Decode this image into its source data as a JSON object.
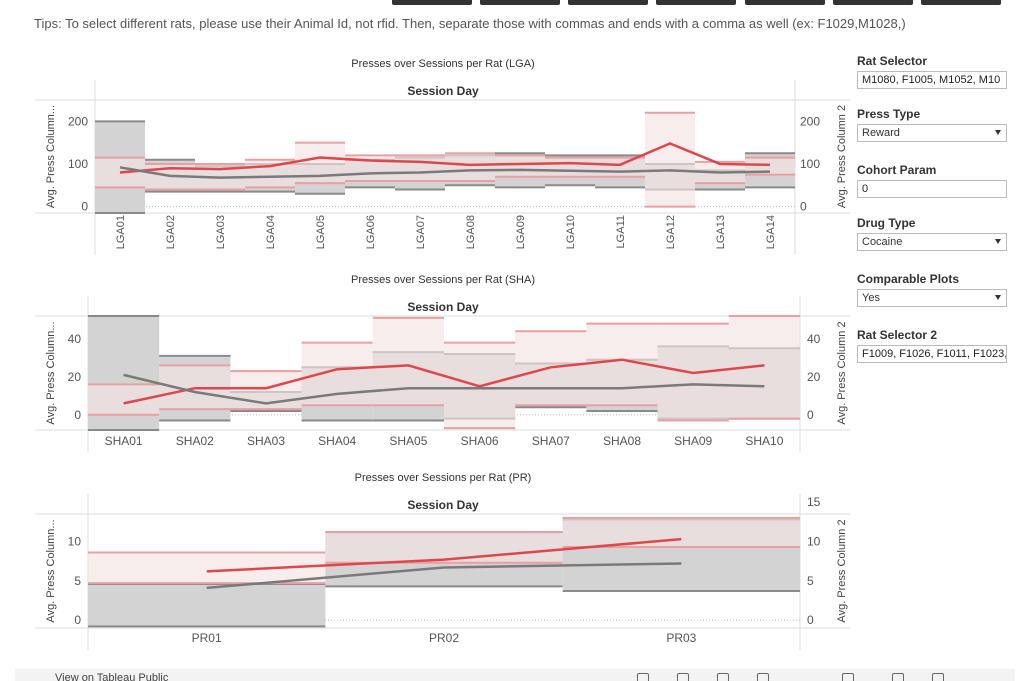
{
  "tips": "Tips: To select different rats, please use their Animal Id, not rfid. Then, separate those with commas and ends with a comma as well (ex: F1029,M1028,)",
  "controls": {
    "rat_selector_label": "Rat Selector",
    "rat_selector_value": "M1080, F1005, M1052, M10",
    "press_type_label": "Press Type",
    "press_type_value": "Reward",
    "cohort_param_label": "Cohort Param",
    "cohort_param_value": "0",
    "drug_type_label": "Drug Type",
    "drug_type_value": "Cocaine",
    "comparable_plots_label": "Comparable Plots",
    "comparable_plots_value": "Yes",
    "rat_selector2_label": "Rat Selector 2",
    "rat_selector2_value": "F1009, F1026, F1011, F1023,"
  },
  "colors": {
    "red": "#e0474c",
    "grey": "#7a7a7a",
    "band_grey": "#d3d3d3",
    "band_pink": "#f2e3e3"
  },
  "footer": {
    "text": "View on Tableau Public"
  },
  "chart_data": [
    {
      "type": "line",
      "title": "Presses over Sessions per Rat (LGA)",
      "header": "Session Day",
      "ylabel_left": "Avg. Press Column...",
      "ylabel_right": "Avg. Press Column 2",
      "left_ticks": [
        0,
        100,
        200
      ],
      "right_ticks": [
        0,
        100,
        200
      ],
      "ylim": [
        -15,
        250
      ],
      "categories": [
        "LGA01",
        "LGA02",
        "LGA03",
        "LGA04",
        "LGA05",
        "LGA06",
        "LGA07",
        "LGA08",
        "LGA09",
        "LGA10",
        "LGA11",
        "LGA12",
        "LGA13",
        "LGA14"
      ],
      "grey_band": [
        [
          -15,
          200
        ],
        [
          35,
          110
        ],
        [
          35,
          95
        ],
        [
          35,
          100
        ],
        [
          30,
          100
        ],
        [
          45,
          110
        ],
        [
          40,
          115
        ],
        [
          50,
          120
        ],
        [
          45,
          125
        ],
        [
          50,
          120
        ],
        [
          45,
          120
        ],
        [
          40,
          100
        ],
        [
          40,
          85
        ],
        [
          45,
          125
        ]
      ],
      "pink_band": [
        [
          45,
          115
        ],
        [
          40,
          100
        ],
        [
          40,
          100
        ],
        [
          45,
          110
        ],
        [
          55,
          150
        ],
        [
          60,
          120
        ],
        [
          60,
          120
        ],
        [
          60,
          125
        ],
        [
          70,
          120
        ],
        [
          70,
          115
        ],
        [
          70,
          115
        ],
        [
          0,
          220
        ],
        [
          55,
          105
        ],
        [
          75,
          115
        ]
      ],
      "series": [
        {
          "color": "#e0474c",
          "values": [
            80,
            90,
            88,
            95,
            115,
            108,
            105,
            98,
            100,
            102,
            98,
            148,
            100,
            98
          ]
        },
        {
          "color": "#7a7a7a",
          "values": [
            92,
            72,
            68,
            70,
            72,
            78,
            80,
            85,
            86,
            84,
            82,
            85,
            80,
            82
          ]
        }
      ]
    },
    {
      "type": "line",
      "title": "Presses over Sessions per Rat (SHA)",
      "header": "Session Day",
      "ylabel_left": "Avg. Press Column...",
      "ylabel_right": "Avg. Press Column 2",
      "left_ticks": [
        0,
        20,
        40
      ],
      "right_ticks": [
        0,
        20,
        40
      ],
      "ylim": [
        -8,
        52
      ],
      "categories": [
        "SHA01",
        "SHA02",
        "SHA03",
        "SHA04",
        "SHA05",
        "SHA06",
        "SHA07",
        "SHA08",
        "SHA09",
        "SHA10"
      ],
      "grey_band": [
        [
          -8,
          52
        ],
        [
          -3,
          31
        ],
        [
          2,
          12
        ],
        [
          -3,
          25
        ],
        [
          -3,
          33
        ],
        [
          -2,
          32
        ],
        [
          4,
          27
        ],
        [
          2,
          29
        ],
        [
          -2,
          36
        ],
        [
          -2,
          35
        ]
      ],
      "pink_band": [
        [
          0,
          16
        ],
        [
          3,
          26
        ],
        [
          3,
          23
        ],
        [
          5,
          38
        ],
        [
          5,
          51
        ],
        [
          -7,
          38
        ],
        [
          5,
          44
        ],
        [
          5,
          48
        ],
        [
          -3,
          48
        ],
        [
          -2,
          57
        ]
      ],
      "series": [
        {
          "color": "#e0474c",
          "values": [
            6,
            14,
            14,
            24,
            26,
            15,
            25,
            29,
            22,
            26
          ]
        },
        {
          "color": "#7a7a7a",
          "values": [
            21,
            12,
            6,
            11,
            14,
            14,
            14,
            14,
            16,
            15
          ]
        }
      ]
    },
    {
      "type": "line",
      "title": "Presses over Sessions per Rat (PR)",
      "header": "Session Day",
      "ylabel_left": "Avg. Press Column...",
      "ylabel_right": "Avg. Press Column 2",
      "left_ticks": [
        0,
        5,
        10
      ],
      "right_ticks": [
        0,
        5,
        10,
        15
      ],
      "ylim": [
        -1,
        13.5
      ],
      "categories": [
        "PR01",
        "PR02",
        "PR03"
      ],
      "grey_band": [
        [
          -0.8,
          4.6
        ],
        [
          4.3,
          11.2
        ],
        [
          3.7,
          12.8
        ]
      ],
      "pink_band": [
        [
          4.7,
          8.6
        ],
        [
          7.3,
          11.2
        ],
        [
          9.3,
          13.0
        ]
      ],
      "series": [
        {
          "color": "#e0474c",
          "values": [
            6.2,
            7.7,
            10.3
          ]
        },
        {
          "color": "#7a7a7a",
          "values": [
            4.1,
            6.7,
            7.2
          ]
        }
      ]
    }
  ]
}
